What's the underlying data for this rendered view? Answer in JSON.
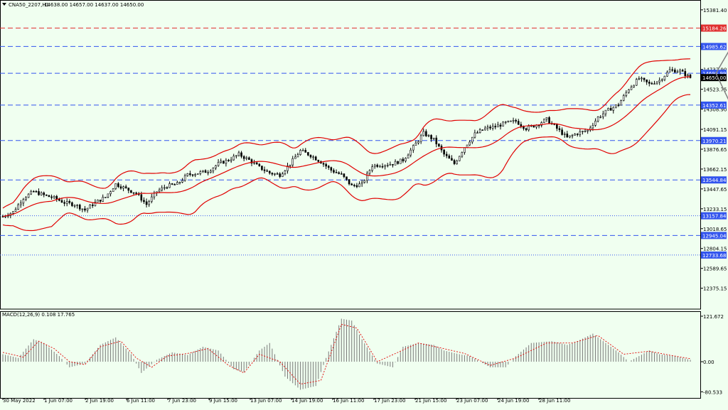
{
  "header": {
    "symbol": "CNA50_2207,H1",
    "ohlc": "14638.00 14657.00 14637.00 14650.00"
  },
  "macd_header": "MACD(12,26,9) 0.108 17.765",
  "colors": {
    "background": "#f0fff0",
    "candle": "#000000",
    "bollinger": "#e00000",
    "level_line": "#3355ee",
    "resistance_line": "#e03030",
    "arrow": "#808080",
    "macd_hist": "#7a7a7a",
    "macd_signal": "#e00000"
  },
  "chart_data": [
    {
      "type": "line",
      "kind": "candlestick",
      "ylim": [
        12150,
        15480
      ],
      "y_ticks": [
        "15381.40",
        "14737.90",
        "14523.75",
        "14308.90",
        "14091.15",
        "13876.65",
        "13662.15",
        "13447.65",
        "13233.15",
        "13018.65",
        "12804.15",
        "12589.65",
        "12375.15"
      ],
      "y_tick_values": [
        15381.4,
        14737.9,
        14523.75,
        14308.9,
        14091.15,
        13876.65,
        13662.15,
        13447.65,
        13233.15,
        13018.65,
        12804.15,
        12589.65,
        12375.15
      ],
      "x_ticks": [
        "30 May 2022",
        "1 Jun 07:00",
        "2 Jun 19:00",
        "6 Jun 11:00",
        "7 Jun 23:00",
        "9 Jun 15:00",
        "13 Jun 07:00",
        "14 Jun 19:00",
        "16 Jun 11:00",
        "17 Jun 23:00",
        "21 Jun 15:00",
        "23 Jun 07:00",
        "24 Jun 19:00",
        "28 Jun 11:00"
      ],
      "levels": [
        {
          "label": "15184.26",
          "value": 15184.26,
          "style": "dash",
          "color": "#e03030"
        },
        {
          "label": "14985.62",
          "value": 14985.62,
          "style": "dash",
          "color": "#3355ee"
        },
        {
          "label": "14695.99",
          "value": 14695.99,
          "style": "dash",
          "color": "#3355ee"
        },
        {
          "label": "14352.61",
          "value": 14352.61,
          "style": "dash",
          "color": "#3355ee"
        },
        {
          "label": "13970.21",
          "value": 13970.21,
          "style": "dash",
          "color": "#3355ee"
        },
        {
          "label": "13544.84",
          "value": 13544.84,
          "style": "dash",
          "color": "#3355ee"
        },
        {
          "label": "13157.84",
          "value": 13157.84,
          "style": "dot",
          "color": "#3355ee"
        },
        {
          "label": "12945.04",
          "value": 12945.04,
          "style": "dash",
          "color": "#3355ee"
        },
        {
          "label": "12733.68",
          "value": 12733.68,
          "style": "dot",
          "color": "#3355ee"
        }
      ],
      "current_price": {
        "label": "14650.00",
        "value": 14650.0
      },
      "close_path": [
        [
          0,
          13150
        ],
        [
          4,
          13200
        ],
        [
          8,
          13350
        ],
        [
          12,
          13420
        ],
        [
          16,
          13380
        ],
        [
          20,
          13350
        ],
        [
          24,
          13300
        ],
        [
          28,
          13280
        ],
        [
          32,
          13220
        ],
        [
          36,
          13300
        ],
        [
          40,
          13360
        ],
        [
          44,
          13500
        ],
        [
          48,
          13450
        ],
        [
          52,
          13400
        ],
        [
          56,
          13280
        ],
        [
          60,
          13420
        ],
        [
          64,
          13480
        ],
        [
          68,
          13500
        ],
        [
          72,
          13600
        ],
        [
          76,
          13620
        ],
        [
          80,
          13640
        ],
        [
          84,
          13720
        ],
        [
          88,
          13760
        ],
        [
          92,
          13820
        ],
        [
          96,
          13760
        ],
        [
          100,
          13680
        ],
        [
          104,
          13620
        ],
        [
          108,
          13600
        ],
        [
          112,
          13720
        ],
        [
          116,
          13860
        ],
        [
          120,
          13810
        ],
        [
          124,
          13740
        ],
        [
          128,
          13650
        ],
        [
          132,
          13600
        ],
        [
          136,
          13480
        ],
        [
          140,
          13500
        ],
        [
          144,
          13700
        ],
        [
          148,
          13710
        ],
        [
          152,
          13720
        ],
        [
          156,
          13760
        ],
        [
          160,
          13900
        ],
        [
          164,
          14050
        ],
        [
          168,
          13980
        ],
        [
          172,
          13820
        ],
        [
          176,
          13720
        ],
        [
          180,
          13900
        ],
        [
          184,
          14040
        ],
        [
          188,
          14100
        ],
        [
          192,
          14120
        ],
        [
          196,
          14160
        ],
        [
          200,
          14180
        ],
        [
          204,
          14100
        ],
        [
          208,
          14140
        ],
        [
          212,
          14200
        ],
        [
          216,
          14100
        ],
        [
          220,
          14000
        ],
        [
          224,
          14050
        ],
        [
          228,
          14080
        ],
        [
          232,
          14220
        ],
        [
          236,
          14300
        ],
        [
          240,
          14360
        ],
        [
          244,
          14530
        ],
        [
          248,
          14640
        ],
        [
          252,
          14580
        ],
        [
          256,
          14620
        ],
        [
          260,
          14730
        ],
        [
          264,
          14720
        ],
        [
          268,
          14650
        ]
      ],
      "macd": {
        "ylim": [
          -95,
          135
        ],
        "y_ticks": [
          "121.672",
          "0.00",
          "-80.533"
        ],
        "y_tick_values": [
          121.672,
          0,
          -80.533
        ],
        "histogram_path": [
          [
            0,
            20
          ],
          [
            6,
            10
          ],
          [
            12,
            60
          ],
          [
            16,
            50
          ],
          [
            22,
            15
          ],
          [
            26,
            -15
          ],
          [
            32,
            -5
          ],
          [
            38,
            45
          ],
          [
            44,
            65
          ],
          [
            50,
            20
          ],
          [
            54,
            -30
          ],
          [
            60,
            5
          ],
          [
            66,
            25
          ],
          [
            72,
            18
          ],
          [
            78,
            40
          ],
          [
            84,
            30
          ],
          [
            90,
            -20
          ],
          [
            94,
            -28
          ],
          [
            100,
            30
          ],
          [
            104,
            50
          ],
          [
            110,
            -40
          ],
          [
            116,
            -75
          ],
          [
            122,
            -65
          ],
          [
            126,
            10
          ],
          [
            132,
            115
          ],
          [
            136,
            110
          ],
          [
            140,
            60
          ],
          [
            146,
            -5
          ],
          [
            152,
            -15
          ],
          [
            156,
            40
          ],
          [
            162,
            50
          ],
          [
            168,
            45
          ],
          [
            172,
            30
          ],
          [
            178,
            20
          ],
          [
            182,
            15
          ],
          [
            186,
            0
          ],
          [
            190,
            -15
          ],
          [
            196,
            -15
          ],
          [
            200,
            15
          ],
          [
            206,
            50
          ],
          [
            214,
            55
          ],
          [
            220,
            45
          ],
          [
            224,
            55
          ],
          [
            230,
            75
          ],
          [
            236,
            45
          ],
          [
            240,
            25
          ],
          [
            244,
            0
          ],
          [
            248,
            15
          ],
          [
            252,
            30
          ],
          [
            256,
            20
          ],
          [
            262,
            15
          ],
          [
            268,
            5
          ]
        ],
        "signal_path": [
          [
            0,
            25
          ],
          [
            8,
            12
          ],
          [
            14,
            55
          ],
          [
            20,
            35
          ],
          [
            26,
            0
          ],
          [
            32,
            -8
          ],
          [
            38,
            40
          ],
          [
            46,
            55
          ],
          [
            52,
            10
          ],
          [
            58,
            -15
          ],
          [
            64,
            15
          ],
          [
            72,
            22
          ],
          [
            80,
            35
          ],
          [
            88,
            -10
          ],
          [
            94,
            -30
          ],
          [
            100,
            20
          ],
          [
            108,
            0
          ],
          [
            116,
            -60
          ],
          [
            124,
            -50
          ],
          [
            132,
            100
          ],
          [
            138,
            90
          ],
          [
            146,
            0
          ],
          [
            154,
            25
          ],
          [
            162,
            50
          ],
          [
            170,
            38
          ],
          [
            180,
            22
          ],
          [
            190,
            -10
          ],
          [
            200,
            10
          ],
          [
            212,
            50
          ],
          [
            222,
            50
          ],
          [
            232,
            70
          ],
          [
            242,
            20
          ],
          [
            252,
            28
          ],
          [
            262,
            15
          ],
          [
            268,
            8
          ]
        ]
      }
    }
  ]
}
